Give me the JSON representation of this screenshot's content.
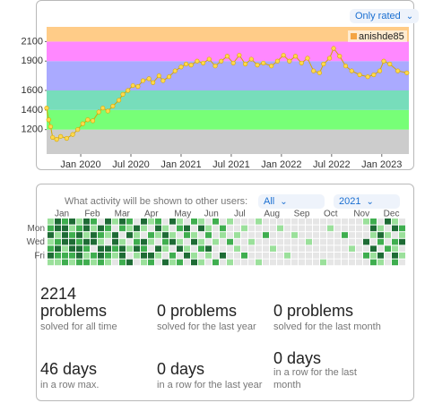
{
  "chart_data": {
    "type": "line",
    "legend": "anishde85",
    "legend_color": "#f4a442",
    "color": "#d4a800",
    "point_color": "#ffd84d",
    "filter": "Only rated",
    "x": [
      2019.66,
      2019.68,
      2019.7,
      2019.72,
      2019.76,
      2019.8,
      2019.86,
      2019.92,
      2019.97,
      2020.02,
      2020.07,
      2020.12,
      2020.18,
      2020.22,
      2020.27,
      2020.32,
      2020.38,
      2020.42,
      2020.47,
      2020.52,
      2020.57,
      2020.62,
      2020.68,
      2020.72,
      2020.78,
      2020.82,
      2020.88,
      2020.94,
      2021.0,
      2021.05,
      2021.1,
      2021.16,
      2021.22,
      2021.28,
      2021.34,
      2021.4,
      2021.46,
      2021.52,
      2021.58,
      2021.64,
      2021.7,
      2021.76,
      2021.82,
      2021.9,
      2021.96,
      2022.02,
      2022.08,
      2022.14,
      2022.2,
      2022.26,
      2022.32,
      2022.38,
      2022.42,
      2022.48,
      2022.52,
      2022.58,
      2022.64,
      2022.7,
      2022.78,
      2022.86,
      2022.92,
      2022.98,
      2023.02,
      2023.08,
      2023.16,
      2023.25
    ],
    "values": [
      1420,
      1300,
      1230,
      1120,
      1100,
      1130,
      1110,
      1150,
      1200,
      1260,
      1300,
      1290,
      1380,
      1420,
      1390,
      1440,
      1500,
      1560,
      1600,
      1650,
      1640,
      1700,
      1720,
      1680,
      1750,
      1700,
      1740,
      1800,
      1840,
      1870,
      1860,
      1900,
      1880,
      1920,
      1850,
      1900,
      1950,
      1880,
      1960,
      1870,
      1920,
      1860,
      1880,
      1850,
      1900,
      1960,
      1900,
      1950,
      1880,
      1930,
      1800,
      1780,
      1870,
      1930,
      2030,
      1950,
      1850,
      1800,
      1760,
      1740,
      1760,
      1800,
      1900,
      1870,
      1800,
      1780
    ],
    "xlim": [
      2019.66,
      2023.27
    ],
    "ylim": [
      950,
      2250
    ],
    "xticks": [
      {
        "value": 2020,
        "label": "Jan 2020"
      },
      {
        "value": 2020.5,
        "label": "Jul 2020"
      },
      {
        "value": 2021,
        "label": "Jan 2021"
      },
      {
        "value": 2021.5,
        "label": "Jul 2021"
      },
      {
        "value": 2022,
        "label": "Jan 2022"
      },
      {
        "value": 2022.5,
        "label": "Jul 2022"
      },
      {
        "value": 2023,
        "label": "Jan 2023"
      }
    ],
    "yticks": [
      1200,
      1400,
      1600,
      1900,
      2100
    ],
    "bands": [
      {
        "from": 950,
        "to": 1200,
        "color": "#cccccc"
      },
      {
        "from": 1200,
        "to": 1400,
        "color": "#77ff77"
      },
      {
        "from": 1400,
        "to": 1600,
        "color": "#77ddbb"
      },
      {
        "from": 1600,
        "to": 1900,
        "color": "#aaaaff"
      },
      {
        "from": 1900,
        "to": 2100,
        "color": "#ff88ff"
      },
      {
        "from": 2100,
        "to": 2250,
        "color": "#ffcc88"
      }
    ]
  },
  "activity": {
    "prompt": "What activity will be shown to other users:",
    "visibility": "All",
    "year": "2021",
    "months": [
      "Jan",
      "Feb",
      "Mar",
      "Apr",
      "May",
      "Jun",
      "Jul",
      "Aug",
      "Sep",
      "Oct",
      "Nov",
      "Dec"
    ],
    "days": [
      "Mon",
      "Wed",
      "Fri"
    ],
    "level_colors": [
      "#e6e6e6",
      "#9be09b",
      "#3fae4f",
      "#1e6b35"
    ],
    "weeks": [
      [
        1,
        2,
        3,
        1,
        2,
        3,
        1
      ],
      [
        3,
        3,
        1,
        2,
        3,
        2,
        1
      ],
      [
        2,
        3,
        3,
        3,
        1,
        2,
        2
      ],
      [
        3,
        1,
        2,
        3,
        3,
        2,
        1
      ],
      [
        1,
        2,
        3,
        2,
        3,
        3,
        2
      ],
      [
        3,
        3,
        1,
        3,
        2,
        1,
        2
      ],
      [
        2,
        1,
        3,
        3,
        0,
        2,
        1
      ],
      [
        0,
        3,
        2,
        1,
        3,
        3,
        2
      ],
      [
        3,
        2,
        1,
        0,
        3,
        2,
        1
      ],
      [
        1,
        0,
        3,
        3,
        2,
        1,
        0
      ],
      [
        3,
        2,
        0,
        1,
        3,
        3,
        2
      ],
      [
        2,
        1,
        3,
        0,
        1,
        0,
        3
      ],
      [
        0,
        3,
        1,
        2,
        3,
        1,
        0
      ],
      [
        3,
        1,
        0,
        3,
        2,
        3,
        1
      ],
      [
        1,
        0,
        2,
        1,
        0,
        3,
        2
      ],
      [
        2,
        3,
        1,
        0,
        3,
        1,
        0
      ],
      [
        0,
        1,
        3,
        2,
        1,
        0,
        3
      ],
      [
        3,
        0,
        1,
        3,
        0,
        2,
        1
      ],
      [
        1,
        2,
        0,
        1,
        3,
        0,
        2
      ],
      [
        0,
        3,
        2,
        0,
        1,
        3,
        0
      ],
      [
        2,
        0,
        1,
        3,
        0,
        1,
        3
      ],
      [
        1,
        3,
        0,
        1,
        2,
        0,
        1
      ],
      [
        0,
        1,
        2,
        0,
        3,
        1,
        0
      ],
      [
        2,
        0,
        0,
        1,
        0,
        0,
        2
      ],
      [
        0,
        2,
        1,
        0,
        0,
        3,
        0
      ],
      [
        1,
        0,
        0,
        2,
        0,
        0,
        1
      ],
      [
        0,
        0,
        1,
        0,
        1,
        0,
        0
      ],
      [
        0,
        1,
        0,
        0,
        0,
        2,
        0
      ],
      [
        0,
        0,
        0,
        1,
        0,
        0,
        0
      ],
      [
        1,
        0,
        0,
        0,
        0,
        0,
        1
      ],
      [
        0,
        0,
        2,
        0,
        0,
        0,
        0
      ],
      [
        0,
        0,
        0,
        0,
        1,
        0,
        0
      ],
      [
        0,
        1,
        0,
        0,
        0,
        0,
        0
      ],
      [
        0,
        0,
        0,
        0,
        0,
        1,
        0
      ],
      [
        0,
        0,
        1,
        0,
        0,
        0,
        0
      ],
      [
        0,
        0,
        0,
        0,
        0,
        0,
        0
      ],
      [
        0,
        0,
        0,
        1,
        0,
        0,
        0
      ],
      [
        0,
        0,
        0,
        0,
        0,
        0,
        0
      ],
      [
        0,
        0,
        0,
        0,
        0,
        0,
        1
      ],
      [
        0,
        1,
        0,
        0,
        0,
        0,
        0
      ],
      [
        0,
        0,
        0,
        0,
        0,
        0,
        0
      ],
      [
        0,
        0,
        2,
        0,
        0,
        0,
        0
      ],
      [
        0,
        0,
        0,
        0,
        1,
        0,
        0
      ],
      [
        0,
        0,
        0,
        0,
        0,
        0,
        0
      ],
      [
        1,
        0,
        0,
        3,
        0,
        2,
        0
      ],
      [
        2,
        3,
        1,
        0,
        3,
        1,
        2
      ],
      [
        0,
        1,
        3,
        2,
        0,
        3,
        1
      ],
      [
        3,
        0,
        1,
        0,
        2,
        0,
        0
      ],
      [
        1,
        3,
        0,
        2,
        1,
        3,
        2
      ],
      [
        0,
        2,
        1,
        3,
        0,
        1,
        0
      ]
    ]
  },
  "stats": [
    {
      "value": "2214",
      "unit": "problems",
      "caption": "solved for all time"
    },
    {
      "value": "0 problems",
      "caption": "solved for the last year"
    },
    {
      "value": "0 problems",
      "caption": "solved for the last month"
    },
    {
      "value": "46 days",
      "caption": "in a row max."
    },
    {
      "value": "0 days",
      "caption": "in a row for the last year"
    },
    {
      "value": "0 days",
      "caption": "in a row for the last month"
    }
  ]
}
